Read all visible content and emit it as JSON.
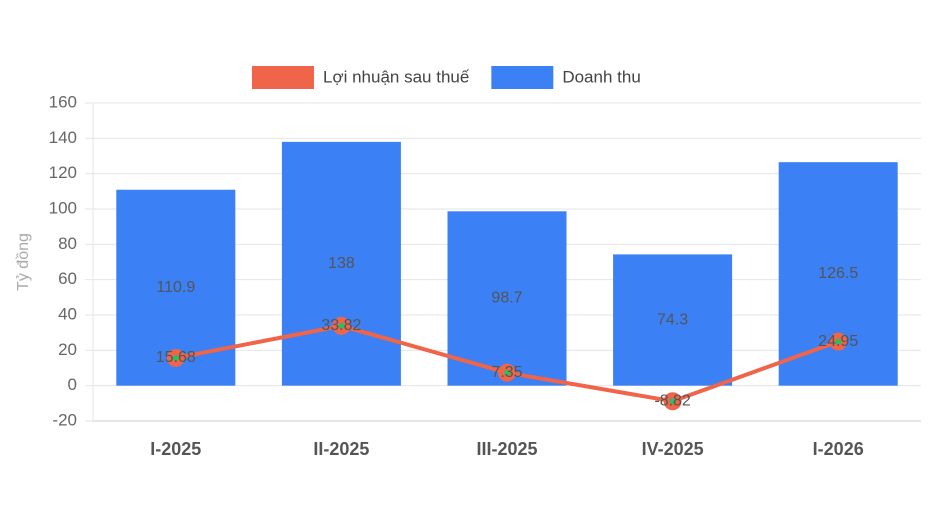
{
  "chart_data": {
    "type": "bar",
    "y_label": "Tỷ đồng",
    "categories": [
      "I-2025",
      "II-2025",
      "III-2025",
      "IV-2025",
      "I-2026"
    ],
    "series": [
      {
        "name": "Lợi nhuận sau thuế",
        "type": "line",
        "color": "#f06449",
        "values": [
          15.68,
          33.82,
          7.35,
          -8.82,
          24.95
        ]
      },
      {
        "name": "Doanh thu",
        "type": "bar",
        "color": "#3b80f4",
        "values": [
          110.9,
          138,
          98.7,
          74.3,
          126.5
        ]
      }
    ],
    "ylim": [
      -20,
      160
    ],
    "yticks": [
      -20,
      0,
      20,
      40,
      60,
      80,
      100,
      120,
      140,
      160
    ],
    "grid": true
  }
}
